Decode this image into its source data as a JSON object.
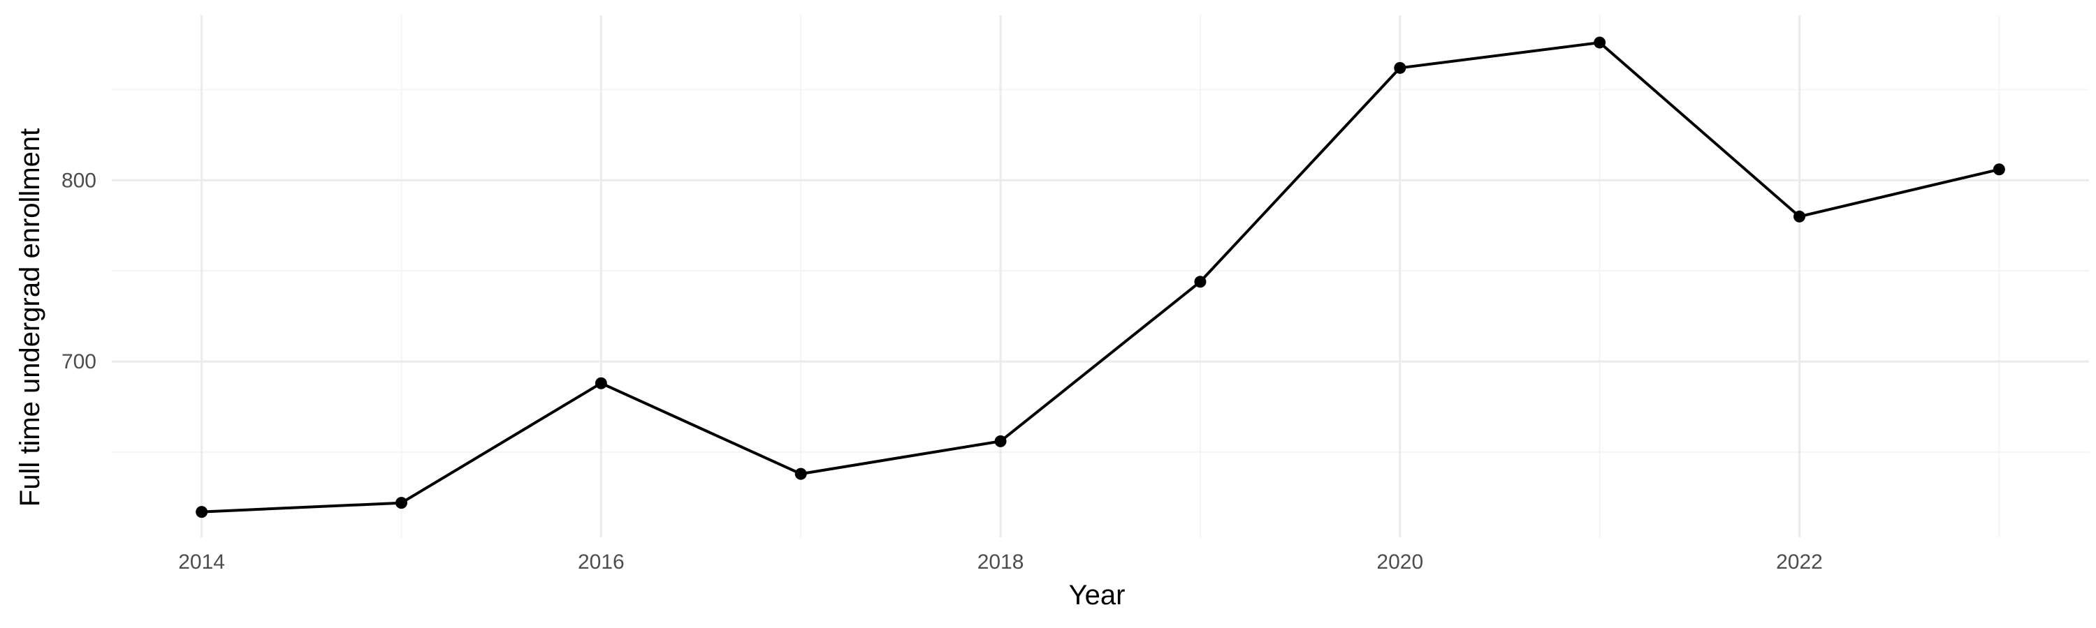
{
  "chart_data": {
    "type": "line",
    "title": "",
    "xlabel": "Year",
    "ylabel": "Full time undergrad enrollment",
    "x": [
      2014,
      2015,
      2016,
      2017,
      2018,
      2019,
      2020,
      2021,
      2022,
      2023
    ],
    "series": [
      {
        "values": [
          617,
          622,
          688,
          638,
          656,
          744,
          862,
          876,
          780,
          806
        ]
      }
    ],
    "xlim": [
      2013.55,
      2023.45
    ],
    "ylim": [
      603,
      891
    ],
    "x_ticks": [
      2014,
      2016,
      2018,
      2020,
      2022
    ],
    "x_tick_labels": [
      "2014",
      "2016",
      "2018",
      "2020",
      "2022"
    ],
    "y_ticks": [
      700,
      800
    ],
    "y_tick_labels": [
      "700",
      "800"
    ],
    "x_minor_ticks": [
      2015,
      2017,
      2019,
      2021,
      2023
    ],
    "y_minor_ticks": [
      650,
      750,
      850
    ],
    "grid": true,
    "legend": "none",
    "colors": {
      "line": "#000000",
      "points": "#000000",
      "grid_major": "#ebebeb",
      "grid_minor": "#f4f4f4",
      "tick_text": "#4d4d4d"
    }
  }
}
